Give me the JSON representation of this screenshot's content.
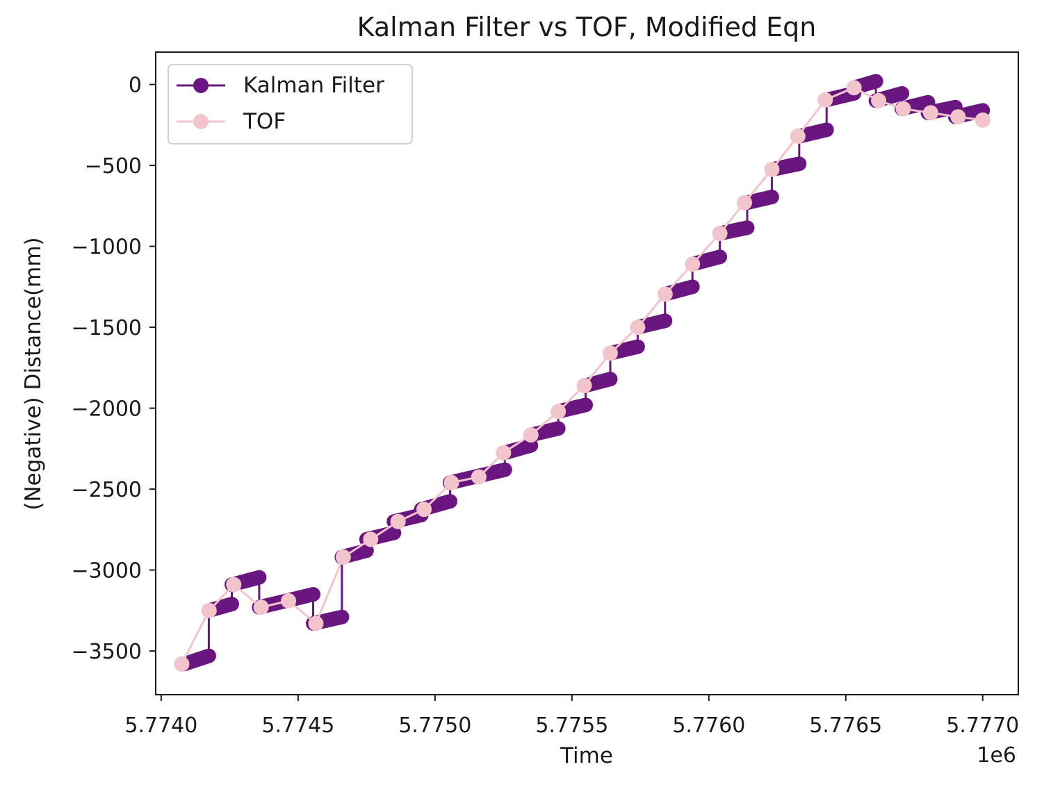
{
  "chart_data": {
    "type": "line",
    "title": "Kalman Filter vs TOF, Modified Eqn",
    "xlabel": "Time",
    "ylabel": "(Negative) Distance(mm)",
    "x_offset_label": "1e6",
    "xlim": [
      5.77398,
      5.77713
    ],
    "ylim": [
      -3770,
      200
    ],
    "x_ticks": [
      5.774,
      5.7745,
      5.775,
      5.7755,
      5.776,
      5.7765,
      5.777
    ],
    "x_tick_labels": [
      "5.7740",
      "5.7745",
      "5.7750",
      "5.7755",
      "5.7760",
      "5.7765",
      "5.7770"
    ],
    "y_ticks": [
      0,
      -500,
      -1000,
      -1500,
      -2000,
      -2500,
      -3000,
      -3500
    ],
    "y_tick_labels": [
      "0",
      "−500",
      "−1000",
      "−1500",
      "−2000",
      "−2500",
      "−3000",
      "−3500"
    ],
    "grid": false,
    "legend_position": "top-left",
    "series": [
      {
        "name": "Kalman Filter",
        "color": "#6a1680",
        "marker": "circle",
        "segments": [
          {
            "x": [
              5.774085,
              5.774174
            ],
            "y": [
              -3580,
              -3530
            ]
          },
          {
            "x": [
              5.774174,
              5.774258
            ],
            "y": [
              -3250,
              -3210
            ]
          },
          {
            "x": [
              5.774258,
              5.774358
            ],
            "y": [
              -3090,
              -3045
            ]
          },
          {
            "x": [
              5.774358,
              5.774555
            ],
            "y": [
              -3230,
              -3150
            ]
          },
          {
            "x": [
              5.774555,
              5.77466
            ],
            "y": [
              -3330,
              -3290
            ]
          },
          {
            "x": [
              5.77466,
              5.77475
            ],
            "y": [
              -2920,
              -2880
            ]
          },
          {
            "x": [
              5.77475,
              5.77485
            ],
            "y": [
              -2810,
              -2770
            ]
          },
          {
            "x": [
              5.77485,
              5.77495
            ],
            "y": [
              -2700,
              -2660
            ]
          },
          {
            "x": [
              5.77495,
              5.775055
            ],
            "y": [
              -2625,
              -2575
            ]
          },
          {
            "x": [
              5.775055,
              5.775255
            ],
            "y": [
              -2460,
              -2380
            ]
          },
          {
            "x": [
              5.775255,
              5.77535
            ],
            "y": [
              -2275,
              -2230
            ]
          },
          {
            "x": [
              5.77535,
              5.77545
            ],
            "y": [
              -2165,
              -2125
            ]
          },
          {
            "x": [
              5.77545,
              5.77555
            ],
            "y": [
              -2020,
              -1980
            ]
          },
          {
            "x": [
              5.77555,
              5.77564
            ],
            "y": [
              -1860,
              -1820
            ]
          },
          {
            "x": [
              5.77564,
              5.77574
            ],
            "y": [
              -1660,
              -1620
            ]
          },
          {
            "x": [
              5.77574,
              5.77584
            ],
            "y": [
              -1500,
              -1460
            ]
          },
          {
            "x": [
              5.77584,
              5.77594
            ],
            "y": [
              -1295,
              -1250
            ]
          },
          {
            "x": [
              5.77594,
              5.77604
            ],
            "y": [
              -1110,
              -1065
            ]
          },
          {
            "x": [
              5.77604,
              5.77614
            ],
            "y": [
              -920,
              -885
            ]
          },
          {
            "x": [
              5.77614,
              5.77623
            ],
            "y": [
              -730,
              -695
            ]
          },
          {
            "x": [
              5.77623,
              5.77633
            ],
            "y": [
              -525,
              -490
            ]
          },
          {
            "x": [
              5.77633,
              5.77643
            ],
            "y": [
              -320,
              -280
            ]
          },
          {
            "x": [
              5.77643,
              5.77653
            ],
            "y": [
              -95,
              -55
            ]
          },
          {
            "x": [
              5.77653,
              5.77661
            ],
            "y": [
              -20,
              20
            ]
          },
          {
            "x": [
              5.77661,
              5.776705
            ],
            "y": [
              -100,
              -55
            ]
          },
          {
            "x": [
              5.776705,
              5.7768
            ],
            "y": [
              -150,
              -110
            ]
          },
          {
            "x": [
              5.7768,
              5.7769
            ],
            "y": [
              -175,
              -140
            ]
          },
          {
            "x": [
              5.7769,
              5.777
            ],
            "y": [
              -200,
              -160
            ]
          }
        ]
      },
      {
        "name": "TOF",
        "color": "#f2c4cb",
        "marker": "circle",
        "x": [
          5.774075,
          5.774175,
          5.774265,
          5.774365,
          5.774465,
          5.774565,
          5.774665,
          5.774765,
          5.774865,
          5.77496,
          5.77506,
          5.77516,
          5.77525,
          5.77535,
          5.77545,
          5.775545,
          5.77564,
          5.77574,
          5.77584,
          5.77594,
          5.77604,
          5.77613,
          5.77623,
          5.776325,
          5.776425,
          5.77653,
          5.77662,
          5.77671,
          5.77681,
          5.77691,
          5.777
        ],
        "y": [
          -3580,
          -3250,
          -3090,
          -3230,
          -3190,
          -3330,
          -2920,
          -2810,
          -2700,
          -2625,
          -2460,
          -2425,
          -2275,
          -2165,
          -2020,
          -1860,
          -1660,
          -1500,
          -1295,
          -1110,
          -920,
          -730,
          -525,
          -320,
          -95,
          -20,
          -100,
          -150,
          -175,
          -200,
          -220
        ]
      }
    ]
  }
}
